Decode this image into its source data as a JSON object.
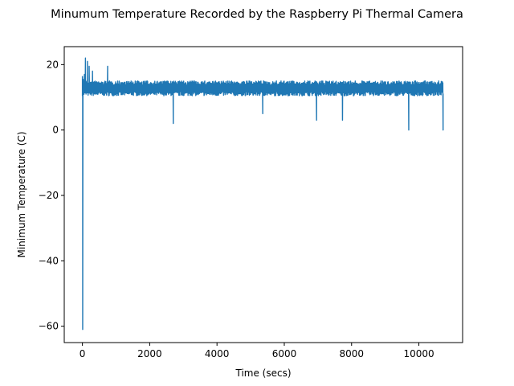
{
  "chart_data": {
    "type": "line",
    "title": "Minumum Temperature Recorded by the Raspberry Pi Thermal Camera",
    "xlabel": "Time (secs)",
    "ylabel": "Minimum Temperature (C)",
    "xlim": [
      -540,
      11300
    ],
    "ylim": [
      -65,
      25.5
    ],
    "xticks": [
      0,
      2000,
      4000,
      6000,
      8000,
      10000
    ],
    "yticks": [
      -60,
      -40,
      -20,
      0,
      20
    ],
    "xtick_labels": [
      "0",
      "2000",
      "4000",
      "6000",
      "8000",
      "10000"
    ],
    "ytick_labels": [
      "−60",
      "−40",
      "−20",
      "0",
      "20"
    ],
    "grid": false,
    "series": [
      {
        "color": "#1f77b4",
        "x_start": 0,
        "x_end": 10720,
        "band_low": 10.5,
        "band_high": 15.0,
        "key_points": [
          {
            "x": 0,
            "y": 16.5
          },
          {
            "x": 8,
            "y": -61
          },
          {
            "x": 20,
            "y": 15.5
          },
          {
            "x": 60,
            "y": 17
          },
          {
            "x": 90,
            "y": 22
          },
          {
            "x": 150,
            "y": 21
          },
          {
            "x": 200,
            "y": 19.5
          },
          {
            "x": 300,
            "y": 18
          },
          {
            "x": 750,
            "y": 19.5
          },
          {
            "x": 2700,
            "y": 2
          },
          {
            "x": 5360,
            "y": 5
          },
          {
            "x": 6960,
            "y": 3
          },
          {
            "x": 7730,
            "y": 3
          },
          {
            "x": 9700,
            "y": 0
          },
          {
            "x": 10720,
            "y": 0
          }
        ]
      }
    ]
  }
}
